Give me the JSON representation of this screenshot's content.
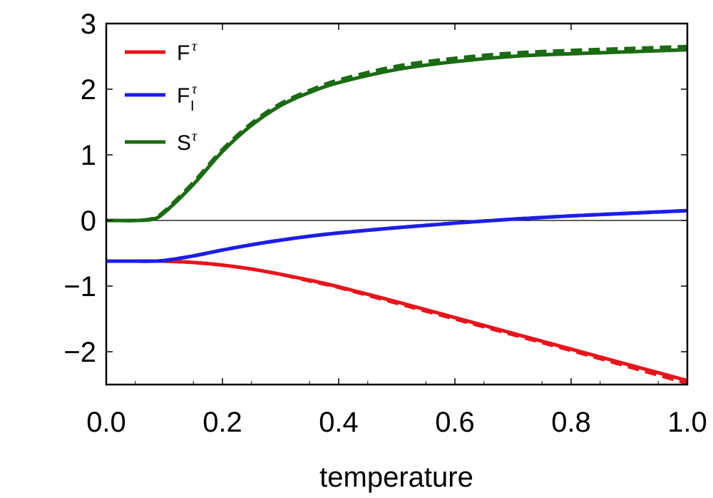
{
  "chart_data": {
    "type": "line",
    "title": "",
    "xlabel": "temperature",
    "ylabel": "",
    "xlim": [
      0.0,
      1.0
    ],
    "ylim": [
      -2.5,
      3.0
    ],
    "x_ticks": [
      {
        "value": 0.0,
        "label": "0.0"
      },
      {
        "value": 0.2,
        "label": "0.2"
      },
      {
        "value": 0.4,
        "label": "0.4"
      },
      {
        "value": 0.6,
        "label": "0.6"
      },
      {
        "value": 0.8,
        "label": "0.8"
      },
      {
        "value": 1.0,
        "label": "1.0"
      }
    ],
    "y_ticks": [
      {
        "value": 3,
        "label": "3"
      },
      {
        "value": 2,
        "label": "2"
      },
      {
        "value": 1,
        "label": "1"
      },
      {
        "value": 0,
        "label": "0"
      },
      {
        "value": -1,
        "label": "−1"
      },
      {
        "value": -2,
        "label": "−2"
      }
    ],
    "zero_line": true,
    "legend_position": "top-left",
    "legend": [
      {
        "key": "F",
        "base": "F",
        "sup": "τ",
        "sub": "",
        "color": "#e8141c"
      },
      {
        "key": "FI",
        "base": "F",
        "sup": "τ",
        "sub": "I",
        "color": "#1d1de6"
      },
      {
        "key": "S",
        "base": "S",
        "sup": "τ",
        "sub": "",
        "color": "#1a6b12"
      }
    ],
    "x": [
      0.0,
      0.05,
      0.08,
      0.1,
      0.15,
      0.2,
      0.25,
      0.3,
      0.35,
      0.4,
      0.5,
      0.6,
      0.7,
      0.8,
      0.9,
      1.0
    ],
    "series": [
      {
        "name": "S (solid)",
        "legend": "S",
        "style": "solid",
        "color": "#1a6b12",
        "values": [
          0.0,
          0.0,
          0.02,
          0.12,
          0.55,
          1.05,
          1.45,
          1.75,
          1.95,
          2.1,
          2.3,
          2.42,
          2.5,
          2.54,
          2.57,
          2.6
        ]
      },
      {
        "name": "S (dashed)",
        "legend": "S",
        "style": "dashed",
        "color": "#1a6b12",
        "values": [
          0.0,
          0.0,
          0.03,
          0.14,
          0.58,
          1.08,
          1.48,
          1.78,
          1.98,
          2.14,
          2.35,
          2.47,
          2.55,
          2.59,
          2.62,
          2.65
        ]
      },
      {
        "name": "F (solid)",
        "legend": "F",
        "style": "solid",
        "color": "#e8141c",
        "values": [
          -0.62,
          -0.62,
          -0.62,
          -0.62,
          -0.64,
          -0.68,
          -0.74,
          -0.82,
          -0.91,
          -1.01,
          -1.24,
          -1.48,
          -1.72,
          -1.96,
          -2.2,
          -2.44
        ]
      },
      {
        "name": "F (dashed)",
        "legend": "F",
        "style": "dashed",
        "color": "#e8141c",
        "values": [
          -0.62,
          -0.62,
          -0.62,
          -0.62,
          -0.64,
          -0.68,
          -0.74,
          -0.82,
          -0.92,
          -1.02,
          -1.26,
          -1.5,
          -1.74,
          -1.98,
          -2.23,
          -2.48
        ]
      },
      {
        "name": "FI (solid)",
        "legend": "FI",
        "style": "solid",
        "color": "#1d1de6",
        "values": [
          -0.62,
          -0.62,
          -0.62,
          -0.61,
          -0.54,
          -0.45,
          -0.37,
          -0.3,
          -0.24,
          -0.19,
          -0.11,
          -0.04,
          0.02,
          0.07,
          0.11,
          0.15
        ]
      },
      {
        "name": "FI (dashed)",
        "legend": "FI",
        "style": "dashed",
        "color": "#1d1de6",
        "values": [
          -0.62,
          -0.62,
          -0.62,
          -0.61,
          -0.54,
          -0.45,
          -0.37,
          -0.3,
          -0.24,
          -0.19,
          -0.11,
          -0.04,
          0.02,
          0.07,
          0.11,
          0.15
        ]
      }
    ]
  }
}
